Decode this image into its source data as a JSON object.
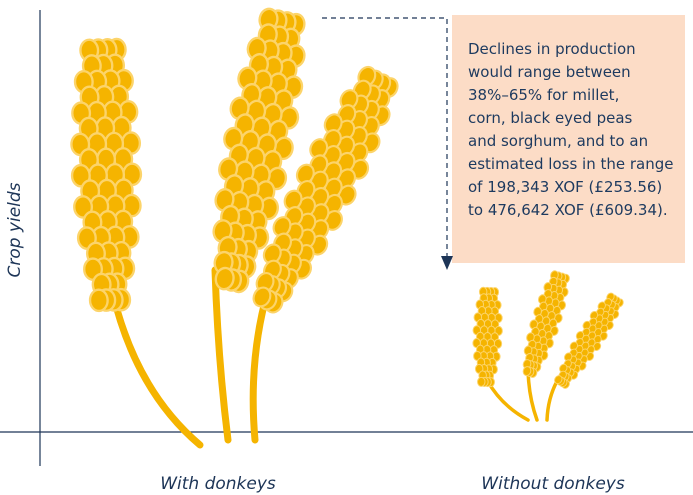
{
  "y_axis_label": "Crop yields",
  "categories": [
    "With donkeys",
    "Without donkeys"
  ],
  "annotation": {
    "lines": [
      "Declines in production",
      "would range between",
      "38%–65% for millet,",
      "corn, black eyed peas",
      "and sorghum, and to an",
      "estimated loss in the range",
      "of 198,343 XOF (£253.56)",
      "to 476,642 XOF (£609.34)."
    ]
  }
}
